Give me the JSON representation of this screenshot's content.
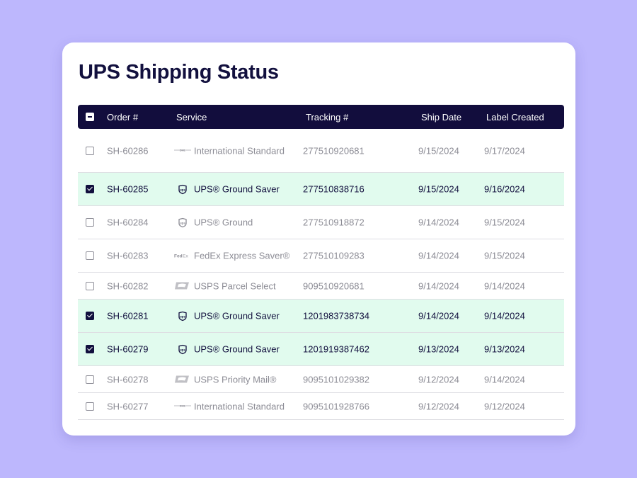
{
  "title": "UPS Shipping Status",
  "colors": {
    "background": "#bdb7fd",
    "header": "#120d3d",
    "selected": "#e1fbee"
  },
  "columns": {
    "order": "Order #",
    "service": "Service",
    "tracking": "Tracking #",
    "ship_date": "Ship Date",
    "label_created": "Label Created"
  },
  "rows": [
    {
      "order": "SH-60286",
      "carrier": "dhl",
      "service": "International Standard",
      "tracking": "277510920681",
      "ship_date": "9/15/2024",
      "label_created": "9/17/2024",
      "selected": false
    },
    {
      "order": "SH-60285",
      "carrier": "ups",
      "service": "UPS® Ground Saver",
      "tracking": "277510838716",
      "ship_date": "9/15/2024",
      "label_created": "9/16/2024",
      "selected": true
    },
    {
      "order": "SH-60284",
      "carrier": "ups",
      "service": "UPS® Ground",
      "tracking": "277510918872",
      "ship_date": "9/14/2024",
      "label_created": "9/15/2024",
      "selected": false
    },
    {
      "order": "SH-60283",
      "carrier": "fedex",
      "service": "FedEx Express Saver®",
      "tracking": "277510109283",
      "ship_date": "9/14/2024",
      "label_created": "9/15/2024",
      "selected": false
    },
    {
      "order": "SH-60282",
      "carrier": "usps",
      "service": "USPS Parcel Select",
      "tracking": "909510920681",
      "ship_date": "9/14/2024",
      "label_created": "9/14/2024",
      "selected": false
    },
    {
      "order": "SH-60281",
      "carrier": "ups",
      "service": "UPS® Ground Saver",
      "tracking": "1201983738734",
      "ship_date": "9/14/2024",
      "label_created": "9/14/2024",
      "selected": true
    },
    {
      "order": "SH-60279",
      "carrier": "ups",
      "service": "UPS® Ground Saver",
      "tracking": "1201919387462",
      "ship_date": "9/13/2024",
      "label_created": "9/13/2024",
      "selected": true
    },
    {
      "order": "SH-60278",
      "carrier": "usps",
      "service": "USPS Priority Mail®",
      "tracking": "9095101029382",
      "ship_date": "9/12/2024",
      "label_created": "9/14/2024",
      "selected": false
    },
    {
      "order": "SH-60277",
      "carrier": "dhl",
      "service": "International Standard",
      "tracking": "9095101928766",
      "ship_date": "9/12/2024",
      "label_created": "9/12/2024",
      "selected": false
    }
  ]
}
